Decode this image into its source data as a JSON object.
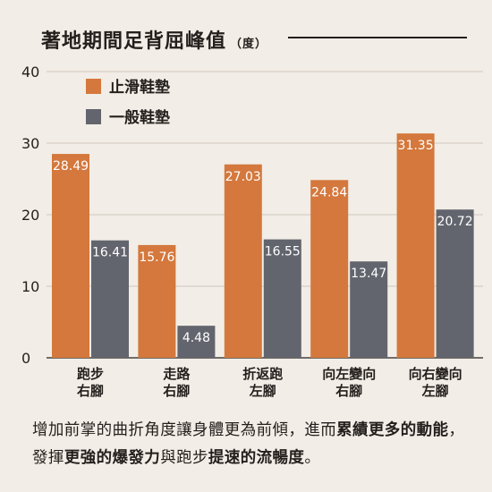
{
  "title": "著地期間足背屈峰值",
  "title_unit": "（度）",
  "colors": {
    "anti_slip": "#d4783d",
    "regular": "#62656d",
    "background": "#f2ede6",
    "text": "#231f1c",
    "grid": "#cfc8be"
  },
  "chart_data": {
    "type": "bar",
    "title": "著地期間足背屈峰值",
    "xlabel": "",
    "ylabel": "",
    "ylim": [
      0,
      40
    ],
    "yticks": [
      0,
      10,
      20,
      30,
      40
    ],
    "grid": true,
    "legend": "top-left",
    "categories": [
      "跑步\n右腳",
      "走路\n右腳",
      "折返跑\n左腳",
      "向左變向\n右腳",
      "向右變向\n左腳"
    ],
    "series": [
      {
        "name": "止滑鞋墊",
        "color": "#d4783d",
        "values": [
          28.49,
          15.76,
          27.03,
          24.84,
          31.35
        ]
      },
      {
        "name": "一般鞋墊",
        "color": "#62656d",
        "values": [
          16.41,
          4.48,
          16.55,
          13.47,
          20.72
        ]
      }
    ]
  },
  "caption": {
    "parts": [
      {
        "text": "增加前掌的曲折角度讓身體更為前傾，進而",
        "bold": false
      },
      {
        "text": "累績更多的動能",
        "bold": true
      },
      {
        "text": "，發揮",
        "bold": false
      },
      {
        "text": "更強的爆發力",
        "bold": true
      },
      {
        "text": "與跑步",
        "bold": false
      },
      {
        "text": "提速的流暢度",
        "bold": true
      },
      {
        "text": "。",
        "bold": false
      }
    ]
  }
}
